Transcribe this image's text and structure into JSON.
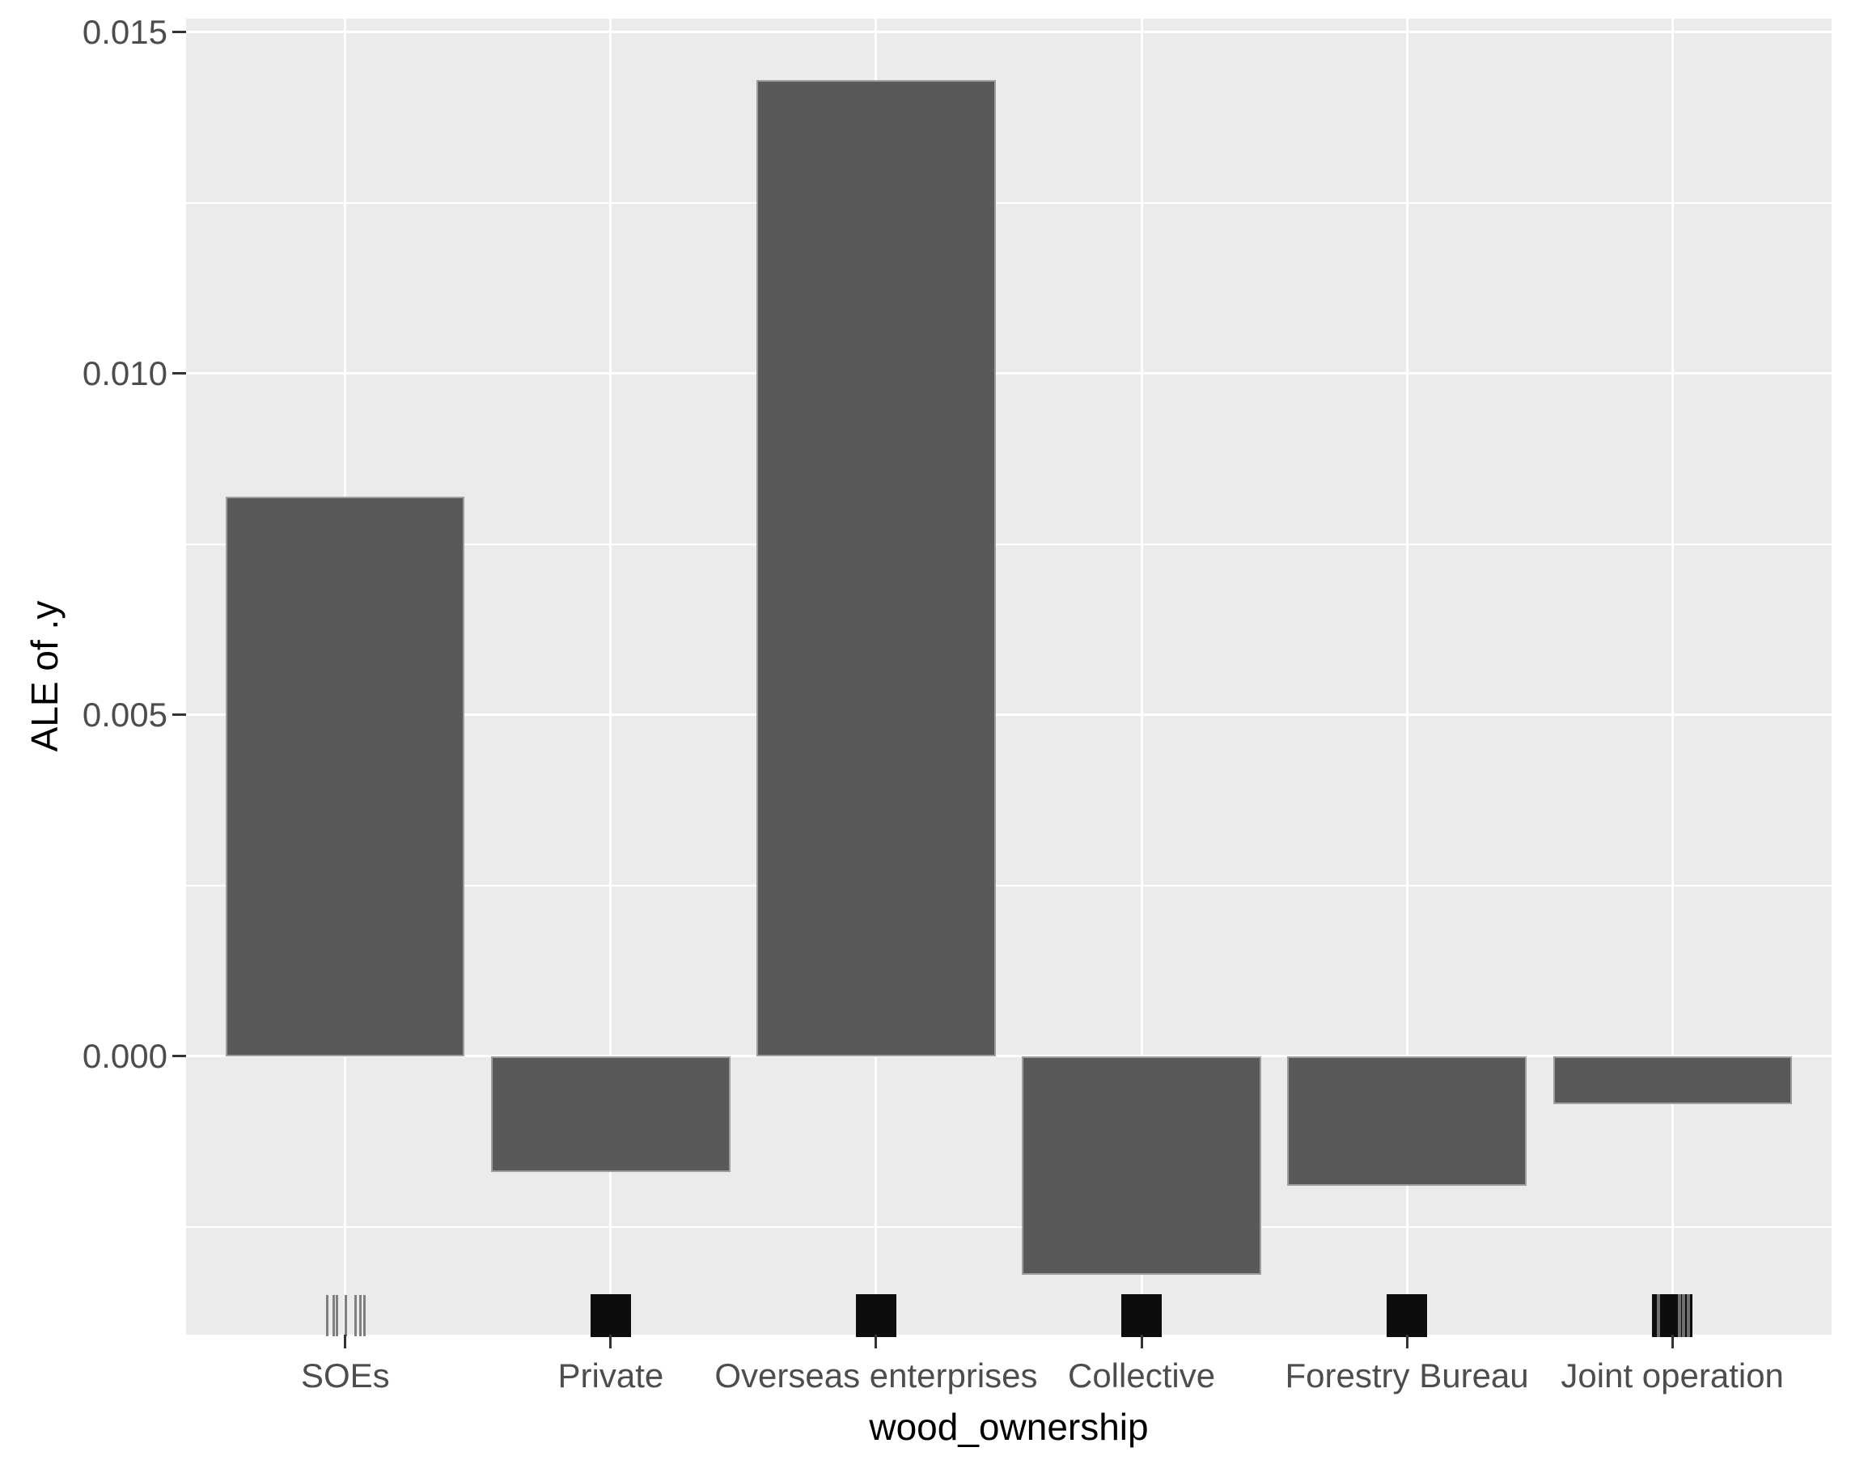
{
  "figure": {
    "background": "#ffffff",
    "panel_background": "#ebebeb",
    "grid_color": "#ffffff",
    "bar_fill": "#595959",
    "bar_border": "#9e9e9e",
    "rug_color": "#0d0d0d",
    "rug_thin_line_color": "#7f7f7f",
    "axis_tick_color": "#333333",
    "axis_text_color": "#4d4d4d",
    "axis_title_color": "#000000"
  },
  "chart_data": {
    "type": "bar",
    "title": "",
    "xlabel": "wood_ownership",
    "ylabel": "ALE of .y",
    "categories": [
      "SOEs",
      "Private",
      "Overseas enterprises",
      "Collective",
      "Forestry Bureau",
      "Joint operation"
    ],
    "values": [
      0.0082,
      -0.0017,
      0.0143,
      -0.0032,
      -0.0019,
      -0.0007
    ],
    "ylim": [
      -0.00408,
      0.0152
    ],
    "yticks": [
      0.0,
      0.005,
      0.01,
      0.015
    ],
    "ytick_labels": [
      "0.000",
      "0.005",
      "0.010",
      "0.015"
    ],
    "yminor": [
      -0.0025,
      0.0025,
      0.0075,
      0.0125
    ],
    "grid": true,
    "legend": "none",
    "bar_rel_width": 0.9,
    "axis_expansion_units": 0.6,
    "rug": [
      {
        "type": "lines",
        "offsets": [
          -22,
          -14,
          -10,
          1,
          13,
          19,
          24
        ]
      },
      {
        "type": "block"
      },
      {
        "type": "block"
      },
      {
        "type": "block"
      },
      {
        "type": "block"
      },
      {
        "type": "block",
        "stripes": [
          -17,
          9,
          14,
          20
        ]
      }
    ]
  }
}
